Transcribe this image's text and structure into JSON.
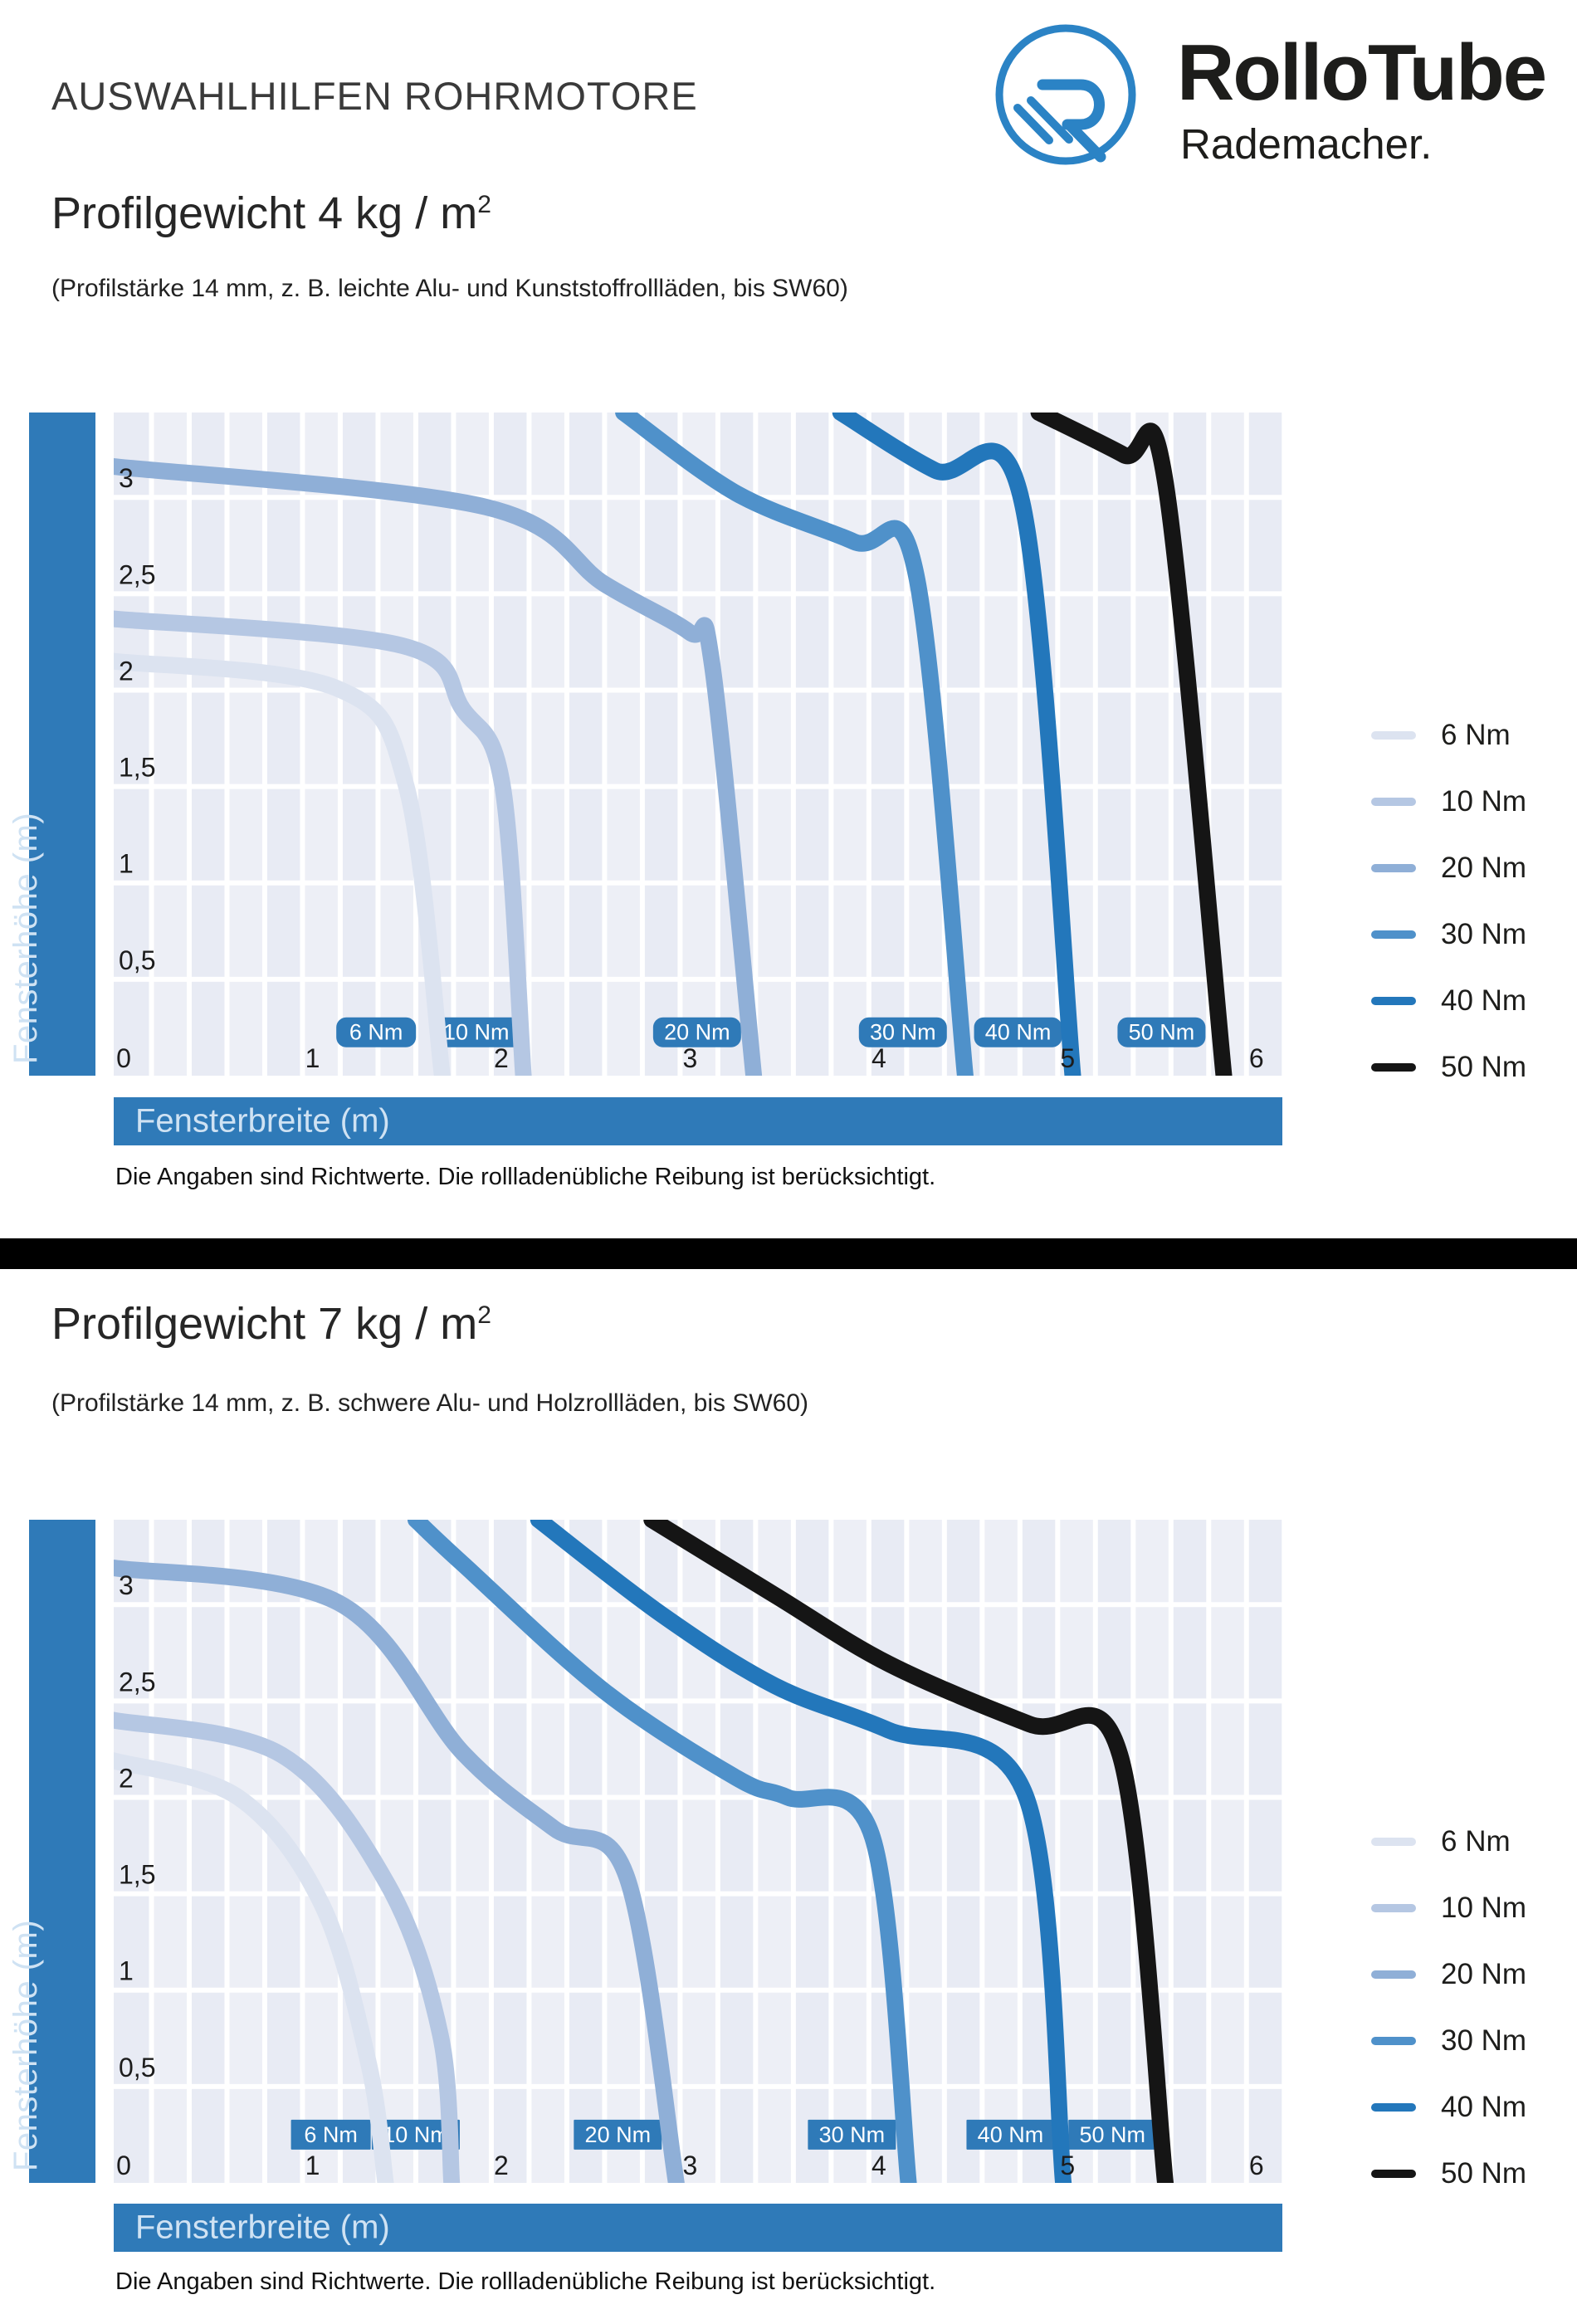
{
  "header": {
    "title": "AUSWAHLHILFEN ROHRMOTORE",
    "logo": {
      "mark_letter": "R",
      "brand": "RolloTube",
      "subbrand": "Rademacher.",
      "color": "#2b83c5"
    }
  },
  "sections": [
    {
      "title": "Profilgewicht 4 kg / m",
      "title_sup": "2",
      "subtitle": "(Profilstärke 14 mm, z. B. leichte Alu- und Kunststoffrollläden, bis SW60)",
      "ylabel": "Fensterhöhe (m)",
      "xlabel": "Fensterbreite (m)",
      "footnote": "Die Angaben sind Richtwerte. Die rollladenübliche Reibung ist berücksichtigt."
    },
    {
      "title": "Profilgewicht 7 kg / m",
      "title_sup": "2",
      "subtitle": "(Profilstärke 14 mm, z. B. schwere Alu- und Holzrollläden, bis SW60)",
      "ylabel": "Fensterhöhe (m)",
      "xlabel": "Fensterbreite (m)",
      "footnote": "Die Angaben sind Richtwerte. Die rollladenübliche Reibung ist berücksichtigt."
    }
  ],
  "colors": {
    "accent": "#2f7ab8",
    "plot_bg": "#e8ebf4",
    "plot_bg_alt": "#edeff6",
    "gridline": "#ffffff",
    "tick_text": "#1c1c1c",
    "badge_text": "#ffffff"
  },
  "chart_data": [
    {
      "type": "line",
      "title": "Profilgewicht 4 kg / m²",
      "xlabel": "Fensterbreite (m)",
      "ylabel": "Fensterhöhe (m)",
      "xlim": [
        0,
        6.19
      ],
      "ylim": [
        0,
        3.44
      ],
      "xticks": [
        0,
        1,
        2,
        3,
        4,
        5,
        6
      ],
      "yticks": [
        0.5,
        1,
        1.5,
        2,
        2.5,
        3
      ],
      "x_minor_step": 0.2,
      "y_grid_step": 0.5,
      "grid": true,
      "legend_position": "right",
      "series": [
        {
          "name": "6 Nm",
          "color": "#dce3f0",
          "points": [
            [
              0,
              2.15
            ],
            [
              1.18,
              2.01
            ],
            [
              1.55,
              1.5
            ],
            [
              1.74,
              0
            ]
          ]
        },
        {
          "name": "10 Nm",
          "color": "#b5c7e3",
          "points": [
            [
              0,
              2.37
            ],
            [
              1.53,
              2.23
            ],
            [
              1.85,
              1.9
            ],
            [
              2.06,
              1.5
            ],
            [
              2.17,
              0
            ]
          ]
        },
        {
          "name": "20 Nm",
          "color": "#8fafd7",
          "points": [
            [
              0,
              3.16
            ],
            [
              1.97,
              2.95
            ],
            [
              2.6,
              2.55
            ],
            [
              3.05,
              2.3
            ],
            [
              3.17,
              2.13
            ],
            [
              3.39,
              0
            ]
          ]
        },
        {
          "name": "30 Nm",
          "color": "#4f91ca",
          "points": [
            [
              2.7,
              3.44
            ],
            [
              3.3,
              3.02
            ],
            [
              3.92,
              2.77
            ],
            [
              4.25,
              2.6
            ],
            [
              4.51,
              0
            ]
          ]
        },
        {
          "name": "40 Nm",
          "color": "#2377bb",
          "points": [
            [
              3.85,
              3.44
            ],
            [
              4.35,
              3.14
            ],
            [
              4.81,
              2.98
            ],
            [
              5.08,
              0
            ]
          ]
        },
        {
          "name": "50 Nm",
          "color": "#151515",
          "points": [
            [
              4.9,
              3.44
            ],
            [
              5.35,
              3.22
            ],
            [
              5.57,
              3.08
            ],
            [
              5.88,
              0
            ]
          ]
        }
      ],
      "badges": [
        {
          "label": "6 Nm",
          "x": 1.39,
          "y": 0.225,
          "rounded": true
        },
        {
          "label": "10 Nm",
          "x": 1.92,
          "y": 0.225,
          "rounded": false
        },
        {
          "label": "20 Nm",
          "x": 3.09,
          "y": 0.225,
          "rounded": true
        },
        {
          "label": "30 Nm",
          "x": 4.18,
          "y": 0.225,
          "rounded": true
        },
        {
          "label": "40 Nm",
          "x": 4.79,
          "y": 0.225,
          "rounded": true
        },
        {
          "label": "50 Nm",
          "x": 5.55,
          "y": 0.225,
          "rounded": true
        }
      ]
    },
    {
      "type": "line",
      "title": "Profilgewicht 7 kg / m²",
      "xlabel": "Fensterbreite (m)",
      "ylabel": "Fensterhöhe (m)",
      "xlim": [
        0,
        6.19
      ],
      "ylim": [
        0,
        3.44
      ],
      "xticks": [
        0,
        1,
        2,
        3,
        4,
        5,
        6
      ],
      "yticks": [
        0.5,
        1,
        1.5,
        2,
        2.5,
        3
      ],
      "x_minor_step": 0.2,
      "y_grid_step": 0.5,
      "grid": true,
      "legend_position": "right",
      "series": [
        {
          "name": "6 Nm",
          "color": "#dce3f0",
          "points": [
            [
              0,
              2.19
            ],
            [
              0.66,
              2.0
            ],
            [
              1.1,
              1.45
            ],
            [
              1.35,
              0.62
            ],
            [
              1.44,
              0
            ]
          ]
        },
        {
          "name": "10 Nm",
          "color": "#b5c7e3",
          "points": [
            [
              0,
              2.4
            ],
            [
              0.89,
              2.22
            ],
            [
              1.45,
              1.55
            ],
            [
              1.73,
              0.77
            ],
            [
              1.79,
              0
            ]
          ]
        },
        {
          "name": "20 Nm",
          "color": "#8fafd7",
          "points": [
            [
              0,
              3.19
            ],
            [
              1.19,
              3.01
            ],
            [
              1.85,
              2.23
            ],
            [
              2.33,
              1.84
            ],
            [
              2.72,
              1.58
            ],
            [
              2.98,
              0
            ]
          ]
        },
        {
          "name": "30 Nm",
          "color": "#4f91ca",
          "points": [
            [
              1.6,
              3.44
            ],
            [
              1.85,
              3.21
            ],
            [
              2.6,
              2.55
            ],
            [
              3.3,
              2.1
            ],
            [
              3.57,
              2.0
            ],
            [
              4.02,
              1.79
            ],
            [
              4.21,
              0
            ]
          ]
        },
        {
          "name": "40 Nm",
          "color": "#2377bb",
          "points": [
            [
              2.25,
              3.44
            ],
            [
              2.9,
              2.95
            ],
            [
              3.5,
              2.58
            ],
            [
              4.1,
              2.35
            ],
            [
              4.83,
              2.01
            ],
            [
              5.03,
              0
            ]
          ]
        },
        {
          "name": "50 Nm",
          "color": "#151515",
          "points": [
            [
              2.85,
              3.44
            ],
            [
              3.5,
              3.05
            ],
            [
              4.11,
              2.69
            ],
            [
              4.85,
              2.38
            ],
            [
              5.33,
              2.22
            ],
            [
              5.57,
              0
            ]
          ]
        }
      ],
      "badges": [
        {
          "label": "6 Nm",
          "x": 1.15,
          "y": 0.25,
          "rounded": false
        },
        {
          "label": "10 Nm",
          "x": 1.6,
          "y": 0.25,
          "rounded": false
        },
        {
          "label": "20 Nm",
          "x": 2.67,
          "y": 0.25,
          "rounded": false
        },
        {
          "label": "30 Nm",
          "x": 3.91,
          "y": 0.25,
          "rounded": false
        },
        {
          "label": "40 Nm",
          "x": 4.75,
          "y": 0.25,
          "rounded": false
        },
        {
          "label": "50 Nm",
          "x": 5.29,
          "y": 0.25,
          "rounded": false
        }
      ]
    }
  ]
}
